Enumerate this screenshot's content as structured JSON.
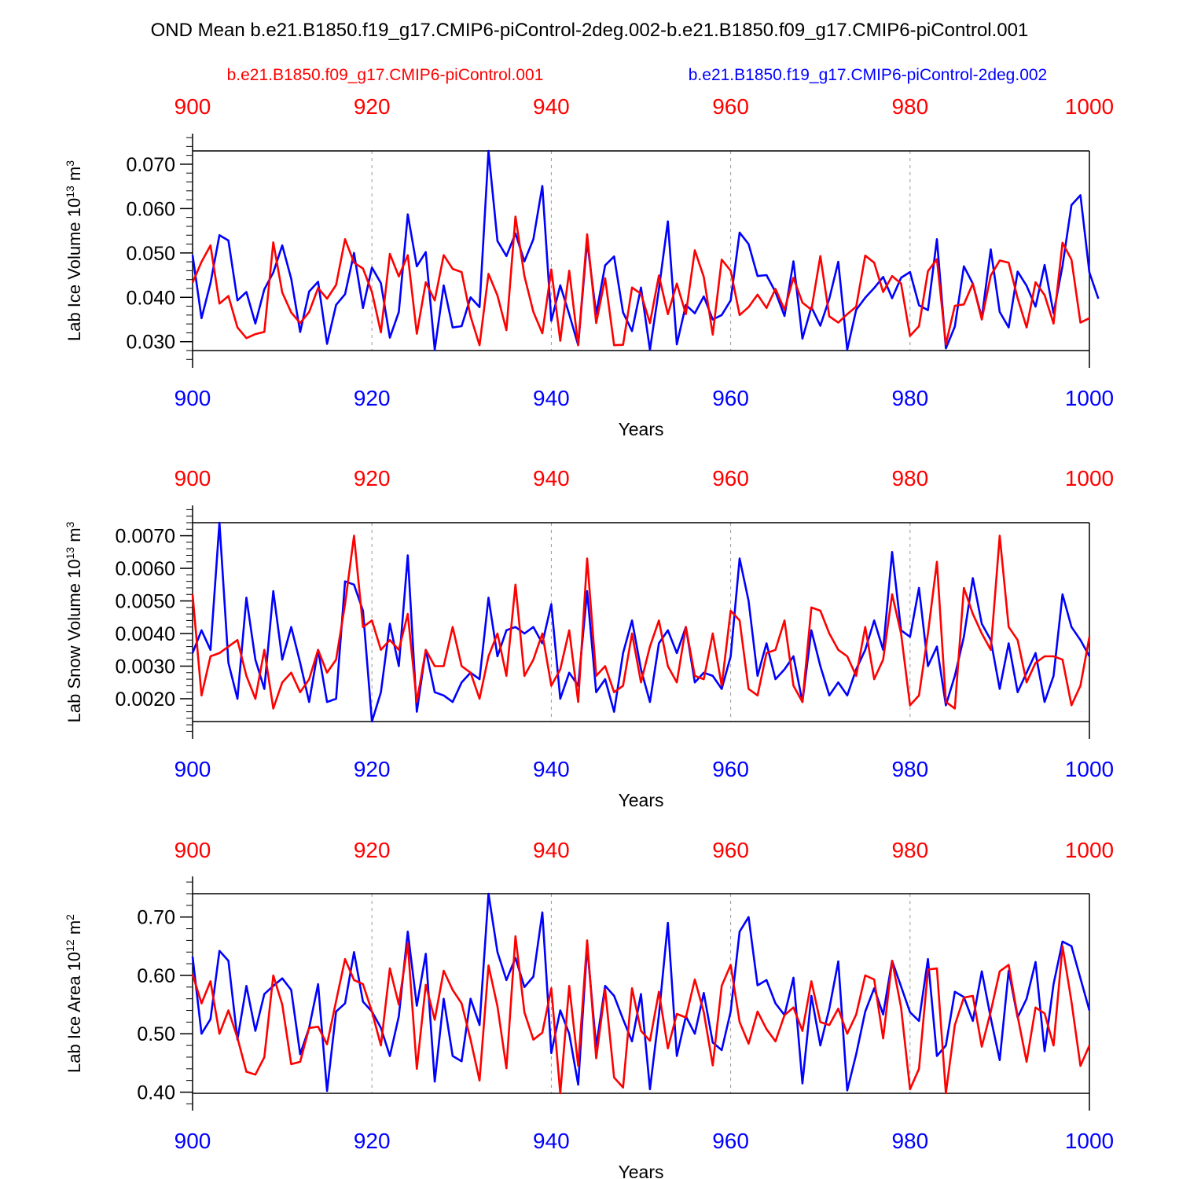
{
  "title": "OND Mean b.e21.B1850.f19_g17.CMIP6-piControl-2deg.002-b.e21.B1850.f09_g17.CMIP6-piControl.001",
  "legend": {
    "red_label": "b.e21.B1850.f09_g17.CMIP6-piControl.001",
    "blue_label": "b.e21.B1850.f19_g17.CMIP6-piControl-2deg.002"
  },
  "colors": {
    "red": "#ff0000",
    "blue": "#0000ff",
    "axis": "#000000",
    "grid": "#999999"
  },
  "chart_data": [
    {
      "type": "line",
      "title": "",
      "ylabel": {
        "main": "Lab Ice Volume 10",
        "exp": "13",
        "unit": " m",
        "unit_exp": "3"
      },
      "xlabel": "Years",
      "xlim": [
        900,
        1000
      ],
      "ylim": [
        0.028,
        0.073
      ],
      "xticks": [
        900,
        920,
        940,
        960,
        980,
        1000
      ],
      "xtick_labels": [
        "900",
        "920",
        "940",
        "960",
        "980",
        "1000"
      ],
      "yticks": [
        0.03,
        0.04,
        0.05,
        0.06,
        0.07
      ],
      "ytick_labels": [
        "0.030",
        "0.040",
        "0.050",
        "0.060",
        "0.070"
      ],
      "yminor_step": 0.002,
      "grid_x": [
        920,
        940,
        960,
        980
      ],
      "x_start": 900,
      "series": [
        {
          "name": "b.e21.B1850.f19_g17.CMIP6-piControl-2deg.002",
          "color": "blue",
          "values": [
            0.0495,
            0.0353,
            0.0432,
            0.054,
            0.0528,
            0.0393,
            0.0412,
            0.0341,
            0.0418,
            0.0456,
            0.0517,
            0.0442,
            0.0322,
            0.0413,
            0.0435,
            0.0295,
            0.0383,
            0.0407,
            0.05,
            0.0376,
            0.0467,
            0.0432,
            0.0309,
            0.0367,
            0.0587,
            0.047,
            0.0502,
            0.0282,
            0.0427,
            0.0332,
            0.0335,
            0.04,
            0.0378,
            0.073,
            0.0527,
            0.0493,
            0.0544,
            0.0481,
            0.0531,
            0.0651,
            0.0347,
            0.0427,
            0.0362,
            0.0292,
            0.0527,
            0.0362,
            0.0472,
            0.0492,
            0.0366,
            0.0324,
            0.0422,
            0.0282,
            0.0418,
            0.0571,
            0.0294,
            0.0383,
            0.0364,
            0.0402,
            0.035,
            0.036,
            0.0393,
            0.0546,
            0.052,
            0.0448,
            0.045,
            0.0412,
            0.0358,
            0.0481,
            0.0307,
            0.0378,
            0.0336,
            0.0397,
            0.048,
            0.0282,
            0.0372,
            0.0399,
            0.0421,
            0.0446,
            0.0398,
            0.0444,
            0.0457,
            0.0382,
            0.0371,
            0.0531,
            0.0285,
            0.0334,
            0.047,
            0.0431,
            0.0354,
            0.0508,
            0.0367,
            0.0332,
            0.0458,
            0.0426,
            0.0379,
            0.0473,
            0.0364,
            0.0471,
            0.0608,
            0.063,
            0.0456,
            0.0397
          ]
        },
        {
          "name": "b.e21.B1850.f09_g17.CMIP6-piControl.001",
          "color": "red",
          "values": [
            0.0433,
            0.048,
            0.0517,
            0.0386,
            0.0403,
            0.0332,
            0.0308,
            0.0317,
            0.0322,
            0.0524,
            0.0411,
            0.0366,
            0.0342,
            0.0367,
            0.0421,
            0.0397,
            0.0428,
            0.0531,
            0.0478,
            0.0465,
            0.0412,
            0.0321,
            0.0498,
            0.0447,
            0.0495,
            0.0318,
            0.0434,
            0.0393,
            0.0495,
            0.0464,
            0.0457,
            0.0357,
            0.0292,
            0.0453,
            0.0404,
            0.0326,
            0.0582,
            0.0448,
            0.0367,
            0.0319,
            0.0463,
            0.0302,
            0.046,
            0.0292,
            0.0542,
            0.0342,
            0.0443,
            0.0292,
            0.0293,
            0.0422,
            0.0408,
            0.0342,
            0.0449,
            0.0362,
            0.0431,
            0.0362,
            0.0506,
            0.0446,
            0.0316,
            0.0485,
            0.046,
            0.036,
            0.0378,
            0.0406,
            0.0376,
            0.0419,
            0.0372,
            0.0444,
            0.0388,
            0.0372,
            0.0493,
            0.0357,
            0.0343,
            0.0362,
            0.0379,
            0.0494,
            0.0478,
            0.0412,
            0.0448,
            0.0431,
            0.0313,
            0.0335,
            0.0459,
            0.0486,
            0.0294,
            0.0381,
            0.0384,
            0.0431,
            0.035,
            0.0449,
            0.0483,
            0.0478,
            0.0398,
            0.0332,
            0.0434,
            0.0405,
            0.0341,
            0.0523,
            0.0485,
            0.0343,
            0.0353
          ]
        }
      ]
    },
    {
      "type": "line",
      "title": "",
      "ylabel": {
        "main": "Lab Snow Volume 10",
        "exp": "13",
        "unit": " m",
        "unit_exp": "3"
      },
      "xlabel": "Years",
      "xlim": [
        900,
        1000
      ],
      "ylim": [
        0.0013,
        0.0074
      ],
      "xticks": [
        900,
        920,
        940,
        960,
        980,
        1000
      ],
      "xtick_labels": [
        "900",
        "920",
        "940",
        "960",
        "980",
        "1000"
      ],
      "yticks": [
        0.002,
        0.003,
        0.004,
        0.005,
        0.006,
        0.007
      ],
      "ytick_labels": [
        "0.0020",
        "0.0030",
        "0.0040",
        "0.0050",
        "0.0060",
        "0.0070"
      ],
      "yminor_step": 0.0002,
      "grid_x": [
        920,
        940,
        960,
        980
      ],
      "x_start": 900,
      "series": [
        {
          "name": "b.e21.B1850.f19_g17.CMIP6-piControl-2deg.002",
          "color": "blue",
          "values": [
            0.0034,
            0.0041,
            0.0035,
            0.0074,
            0.0031,
            0.002,
            0.0051,
            0.0032,
            0.0023,
            0.0053,
            0.0032,
            0.0042,
            0.0031,
            0.0019,
            0.0035,
            0.0019,
            0.002,
            0.0056,
            0.0055,
            0.0047,
            0.0013,
            0.0022,
            0.0043,
            0.003,
            0.0064,
            0.0016,
            0.0035,
            0.0022,
            0.0021,
            0.0019,
            0.0025,
            0.0028,
            0.0026,
            0.0051,
            0.0033,
            0.0041,
            0.0042,
            0.004,
            0.0042,
            0.0037,
            0.0049,
            0.002,
            0.0028,
            0.0024,
            0.0053,
            0.0022,
            0.0026,
            0.0016,
            0.0034,
            0.0044,
            0.0029,
            0.0019,
            0.0037,
            0.0041,
            0.0034,
            0.0042,
            0.0025,
            0.0028,
            0.0027,
            0.0023,
            0.0033,
            0.0063,
            0.005,
            0.0027,
            0.0037,
            0.0026,
            0.0029,
            0.0033,
            0.0019,
            0.0041,
            0.003,
            0.0021,
            0.0025,
            0.0021,
            0.0029,
            0.0035,
            0.0044,
            0.0035,
            0.0065,
            0.0041,
            0.0039,
            0.0054,
            0.003,
            0.0036,
            0.0018,
            0.0027,
            0.0039,
            0.0057,
            0.0043,
            0.0038,
            0.0023,
            0.0037,
            0.0022,
            0.0028,
            0.0034,
            0.0019,
            0.0027,
            0.0052,
            0.0042,
            0.0038,
            0.0033
          ]
        },
        {
          "name": "b.e21.B1850.f09_g17.CMIP6-piControl.001",
          "color": "red",
          "values": [
            0.0052,
            0.0021,
            0.0033,
            0.0034,
            0.0036,
            0.0038,
            0.0027,
            0.002,
            0.0035,
            0.0017,
            0.0025,
            0.0028,
            0.0022,
            0.0026,
            0.0035,
            0.0028,
            0.0032,
            0.0049,
            0.007,
            0.0042,
            0.0044,
            0.0035,
            0.0038,
            0.0035,
            0.0046,
            0.0019,
            0.0035,
            0.003,
            0.003,
            0.0042,
            0.003,
            0.0028,
            0.002,
            0.0033,
            0.004,
            0.0027,
            0.0055,
            0.0027,
            0.0032,
            0.004,
            0.0024,
            0.0029,
            0.0041,
            0.0019,
            0.0063,
            0.0027,
            0.003,
            0.0022,
            0.0024,
            0.004,
            0.0025,
            0.0036,
            0.0044,
            0.003,
            0.0025,
            0.0042,
            0.0027,
            0.0026,
            0.004,
            0.0024,
            0.0047,
            0.0044,
            0.0023,
            0.0021,
            0.0034,
            0.0035,
            0.0044,
            0.0024,
            0.0019,
            0.0048,
            0.0047,
            0.004,
            0.0035,
            0.0033,
            0.0027,
            0.0042,
            0.0026,
            0.0032,
            0.0052,
            0.004,
            0.0018,
            0.0021,
            0.004,
            0.0062,
            0.0019,
            0.0017,
            0.0054,
            0.0046,
            0.004,
            0.0035,
            0.007,
            0.0042,
            0.0038,
            0.0025,
            0.0031,
            0.0033,
            0.0033,
            0.0032,
            0.0018,
            0.0024,
            0.0039
          ]
        }
      ]
    },
    {
      "type": "line",
      "title": "",
      "ylabel": {
        "main": "Lab Ice Area 10",
        "exp": "12",
        "unit": " m",
        "unit_exp": "2"
      },
      "xlabel": "Years",
      "xlim": [
        900,
        1000
      ],
      "ylim": [
        0.398,
        0.74
      ],
      "xticks": [
        900,
        920,
        940,
        960,
        980,
        1000
      ],
      "xtick_labels": [
        "900",
        "920",
        "940",
        "960",
        "980",
        "1000"
      ],
      "yticks": [
        0.4,
        0.5,
        0.6,
        0.7
      ],
      "ytick_labels": [
        "0.40",
        "0.50",
        "0.60",
        "0.70"
      ],
      "yminor_step": 0.02,
      "grid_x": [
        920,
        940,
        960,
        980
      ],
      "x_start": 900,
      "series": [
        {
          "name": "b.e21.B1850.f19_g17.CMIP6-piControl-2deg.002",
          "color": "blue",
          "values": [
            0.632,
            0.5,
            0.525,
            0.642,
            0.625,
            0.49,
            0.582,
            0.505,
            0.568,
            0.582,
            0.595,
            0.575,
            0.465,
            0.51,
            0.585,
            0.402,
            0.538,
            0.552,
            0.64,
            0.555,
            0.538,
            0.51,
            0.462,
            0.53,
            0.675,
            0.548,
            0.637,
            0.418,
            0.56,
            0.462,
            0.453,
            0.56,
            0.515,
            0.74,
            0.64,
            0.592,
            0.63,
            0.58,
            0.598,
            0.708,
            0.467,
            0.54,
            0.5,
            0.413,
            0.65,
            0.478,
            0.582,
            0.565,
            0.525,
            0.487,
            0.568,
            0.405,
            0.532,
            0.69,
            0.462,
            0.53,
            0.5,
            0.57,
            0.485,
            0.472,
            0.538,
            0.675,
            0.7,
            0.583,
            0.592,
            0.552,
            0.532,
            0.596,
            0.415,
            0.565,
            0.48,
            0.543,
            0.624,
            0.403,
            0.465,
            0.538,
            0.578,
            0.533,
            0.625,
            0.581,
            0.537,
            0.522,
            0.628,
            0.462,
            0.48,
            0.572,
            0.563,
            0.522,
            0.607,
            0.527,
            0.455,
            0.608,
            0.528,
            0.56,
            0.623,
            0.47,
            0.585,
            0.658,
            0.65,
            0.595,
            0.54
          ]
        },
        {
          "name": "b.e21.B1850.f09_g17.CMIP6-piControl.001",
          "color": "red",
          "values": [
            0.602,
            0.552,
            0.59,
            0.5,
            0.54,
            0.493,
            0.435,
            0.43,
            0.46,
            0.6,
            0.55,
            0.448,
            0.452,
            0.51,
            0.512,
            0.482,
            0.556,
            0.628,
            0.592,
            0.585,
            0.538,
            0.48,
            0.612,
            0.55,
            0.655,
            0.44,
            0.584,
            0.524,
            0.608,
            0.575,
            0.552,
            0.49,
            0.42,
            0.617,
            0.547,
            0.441,
            0.667,
            0.537,
            0.49,
            0.502,
            0.578,
            0.398,
            0.582,
            0.445,
            0.66,
            0.458,
            0.576,
            0.425,
            0.408,
            0.578,
            0.505,
            0.488,
            0.572,
            0.475,
            0.534,
            0.528,
            0.593,
            0.537,
            0.446,
            0.582,
            0.618,
            0.52,
            0.483,
            0.538,
            0.508,
            0.487,
            0.532,
            0.545,
            0.505,
            0.59,
            0.52,
            0.515,
            0.543,
            0.5,
            0.533,
            0.6,
            0.593,
            0.492,
            0.625,
            0.545,
            0.405,
            0.44,
            0.61,
            0.612,
            0.398,
            0.515,
            0.562,
            0.565,
            0.478,
            0.538,
            0.607,
            0.618,
            0.53,
            0.452,
            0.545,
            0.535,
            0.48,
            0.65,
            0.555,
            0.445,
            0.48
          ]
        }
      ]
    }
  ]
}
